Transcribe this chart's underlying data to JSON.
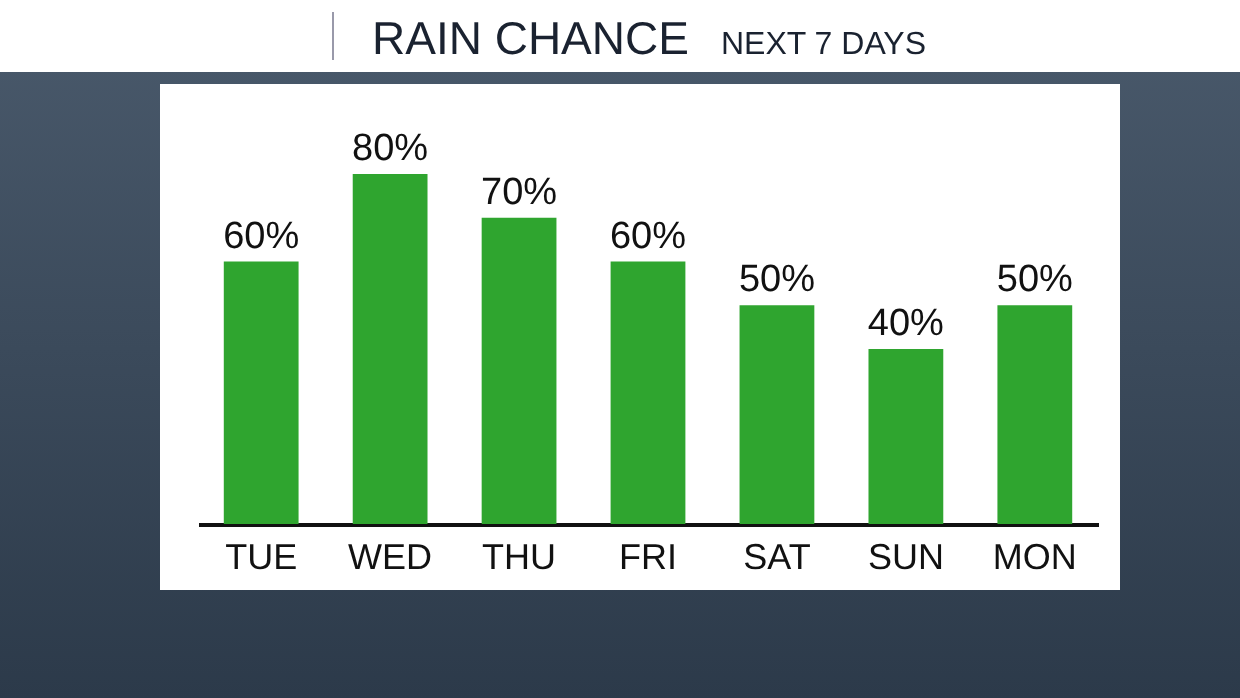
{
  "chart_data": {
    "type": "bar",
    "title": "RAIN CHANCE",
    "subtitle": "NEXT 7 DAYS",
    "categories": [
      "TUE",
      "WED",
      "THU",
      "FRI",
      "SAT",
      "SUN",
      "MON"
    ],
    "values": [
      60,
      80,
      70,
      60,
      50,
      40,
      50
    ],
    "value_labels": [
      "60%",
      "80%",
      "70%",
      "60%",
      "50%",
      "40%",
      "50%"
    ],
    "color": "#2fa52f",
    "grid": false
  }
}
